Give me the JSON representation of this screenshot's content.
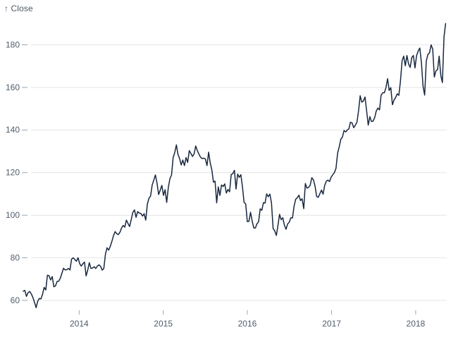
{
  "page": {
    "background": "#ffffff"
  },
  "header": {
    "y_axis_label": "↑ Close"
  },
  "colors": {
    "line": "#18283f",
    "grid": "#e4e4e4",
    "tick_mark": "#9aa5b1",
    "text": "#505c6b",
    "background": "#ffffff"
  },
  "chart_data": {
    "type": "line",
    "title": "",
    "xlabel": "",
    "ylabel": "Close",
    "legend": "none",
    "grid": "horizontal",
    "x_domain": [
      "2013-04-24",
      "2018-05-16"
    ],
    "y_domain": [
      54,
      192
    ],
    "x_ticks": [
      "2014",
      "2015",
      "2016",
      "2017",
      "2018"
    ],
    "y_ticks": [
      60,
      80,
      100,
      120,
      140,
      160,
      180
    ],
    "series": [
      {
        "name": "Close",
        "start_date": "2013-05-03",
        "interval_days": 7,
        "values": [
          64.3,
          64.7,
          61.9,
          63.6,
          64.2,
          63.1,
          61.4,
          59.1,
          56.6,
          59.6,
          60.9,
          60.7,
          62.9,
          66.1,
          64.9,
          71.8,
          71.6,
          69.6,
          71.2,
          66.4,
          66.8,
          68.9,
          69.0,
          70.4,
          72.7,
          75.1,
          74.3,
          74.4,
          75.0,
          74.3,
          79.4,
          80.0,
          79.2,
          78.4,
          80.0,
          77.3,
          76.1,
          77.2,
          78.0,
          71.5,
          74.2,
          77.7,
          75.0,
          75.2,
          75.8,
          75.0,
          76.1,
          76.7,
          76.0,
          74.2,
          75.0,
          81.7,
          84.7,
          83.6,
          85.4,
          87.7,
          90.4,
          92.3,
          91.3,
          90.9,
          92.0,
          94.0,
          95.2,
          94.4,
          97.7,
          96.1,
          94.7,
          98.0,
          101.3,
          102.5,
          99.0,
          101.7,
          101.0,
          100.8,
          99.6,
          100.7,
          97.7,
          105.2,
          108.0,
          109.0,
          114.2,
          116.5,
          118.9,
          115.0,
          109.7,
          111.8,
          114.0,
          109.3,
          112.0,
          106.0,
          113.0,
          117.2,
          118.9,
          127.1,
          129.5,
          133.0,
          128.5,
          126.6,
          123.6,
          125.9,
          123.3,
          127.1,
          124.8,
          130.3,
          129.0,
          127.6,
          128.8,
          132.5,
          130.3,
          128.7,
          127.2,
          126.6,
          126.8,
          126.4,
          123.3,
          129.6,
          124.5,
          121.3,
          115.5,
          116.0,
          105.8,
          113.3,
          109.3,
          114.2,
          113.5,
          114.7,
          110.4,
          112.1,
          111.0,
          119.1,
          119.5,
          121.1,
          112.3,
          119.3,
          117.8,
          119.0,
          113.2,
          106.0,
          105.3,
          97.0,
          97.1,
          101.4,
          97.3,
          94.0,
          94.0,
          96.0,
          96.9,
          103.0,
          102.3,
          105.9,
          105.7,
          110.0,
          108.7,
          109.9,
          105.7,
          93.7,
          92.7,
          90.5,
          95.2,
          100.4,
          97.9,
          98.8,
          95.3,
          93.4,
          95.9,
          96.7,
          98.8,
          98.7,
          104.2,
          107.5,
          108.2,
          109.4,
          106.9,
          107.7,
          103.1,
          114.9,
          112.7,
          113.1,
          114.1,
          117.6,
          116.6,
          113.7,
          108.8,
          108.4,
          110.1,
          111.8,
          109.9,
          114.0,
          116.0,
          116.5,
          115.8,
          117.9,
          119.0,
          120.0,
          122.0,
          129.1,
          132.1,
          135.7,
          136.7,
          139.8,
          139.1,
          140.0,
          140.6,
          143.7,
          143.3,
          141.1,
          142.3,
          143.7,
          149.0,
          156.1,
          153.1,
          153.6,
          155.5,
          149.0,
          142.3,
          146.3,
          144.0,
          144.2,
          145.8,
          149.0,
          150.3,
          149.5,
          156.4,
          157.5,
          157.5,
          159.9,
          164.1,
          158.6,
          159.9,
          151.9,
          154.1,
          155.3,
          157.0,
          156.3,
          163.1,
          172.5,
          174.7,
          170.2,
          175.0,
          171.1,
          169.4,
          174.0,
          175.0,
          169.2,
          175.0,
          177.1,
          178.5,
          171.5,
          160.5,
          156.4,
          172.4,
          175.5,
          176.2,
          180.0,
          178.0,
          164.9,
          167.8,
          168.4,
          174.7,
          165.7,
          162.3,
          183.8,
          190.0
        ]
      }
    ]
  }
}
